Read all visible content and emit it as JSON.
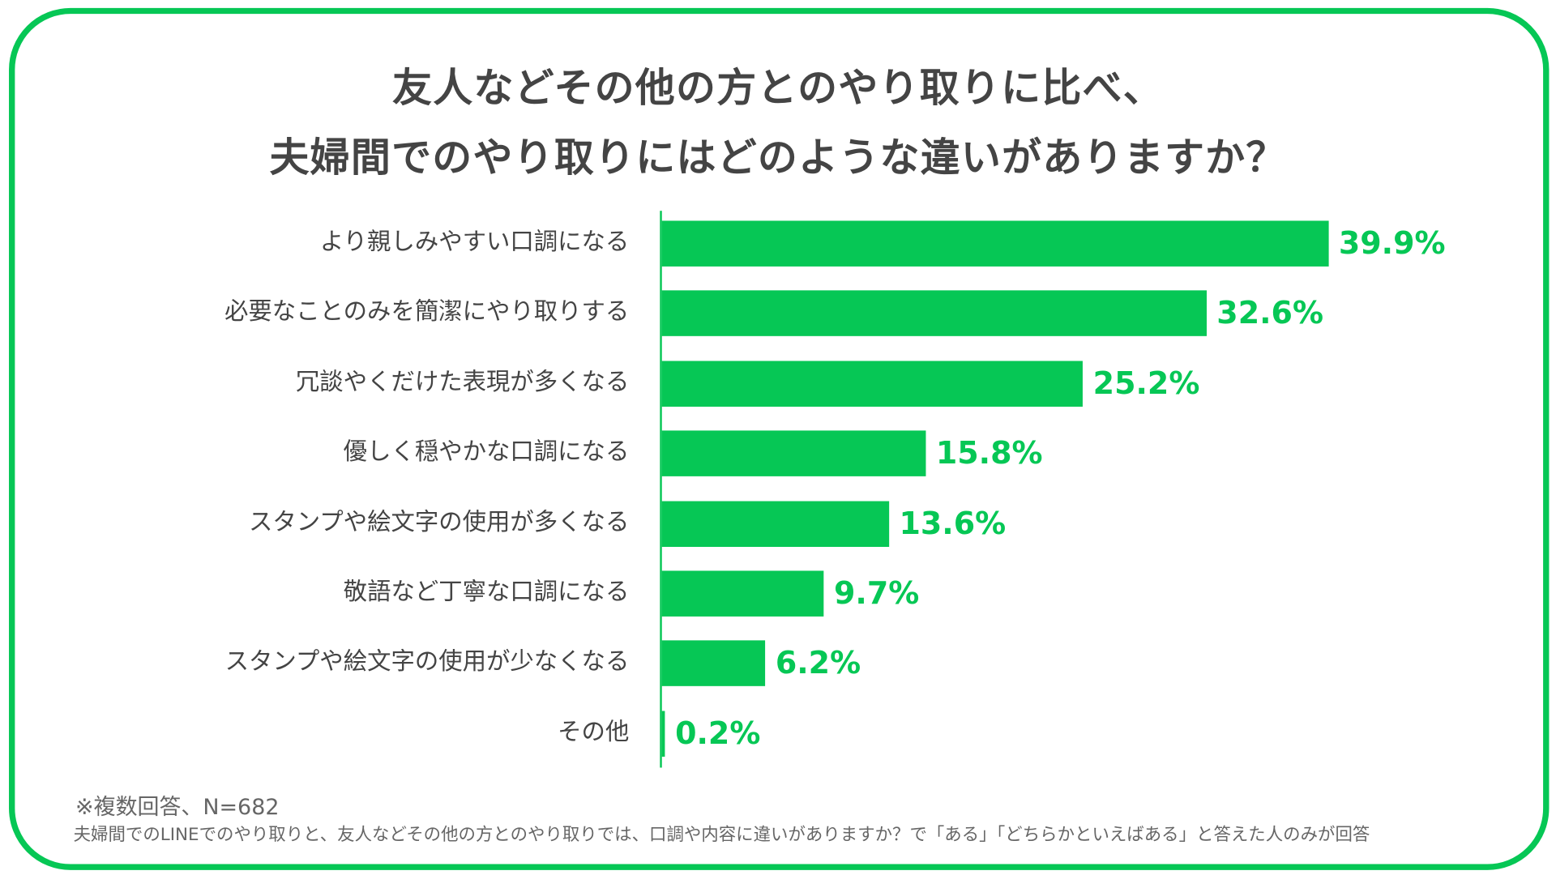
{
  "chart_data": {
    "type": "bar",
    "orientation": "horizontal",
    "title": [
      "友人などその他の方とのやり取りに比べ、",
      "夫婦間でのやり取りにはどのような違いがありますか？"
    ],
    "categories": [
      "より親しみやすい口調になる",
      "必要なことのみを簡潔にやり取りする",
      "冗談やくだけた表現が多くなる",
      "優しく穏やかな口調になる",
      "スタンプや絵文字の使用が多くなる",
      "敬語など丁寧な口調になる",
      "スタンプや絵文字の使用が少なくなる",
      "その他"
    ],
    "values": [
      39.9,
      32.6,
      25.2,
      15.8,
      13.6,
      9.7,
      6.2,
      0.2
    ],
    "value_labels": [
      "39.9%",
      "32.6%",
      "25.2%",
      "15.8%",
      "13.6%",
      "9.7%",
      "6.2%",
      "0.2%"
    ],
    "unit": "%",
    "xlim": [
      0,
      40
    ],
    "grid": false,
    "bar_color": "#06c755",
    "border_color": "#06c755"
  },
  "notes": {
    "line1": "※複数回答、N=682",
    "line2": "夫婦間でのLINEでのやり取りと、友人などその他の方とのやり取りでは、口調や内容に違いがありますか？で「ある」「どちらかといえばある」と答えた人のみが回答"
  }
}
